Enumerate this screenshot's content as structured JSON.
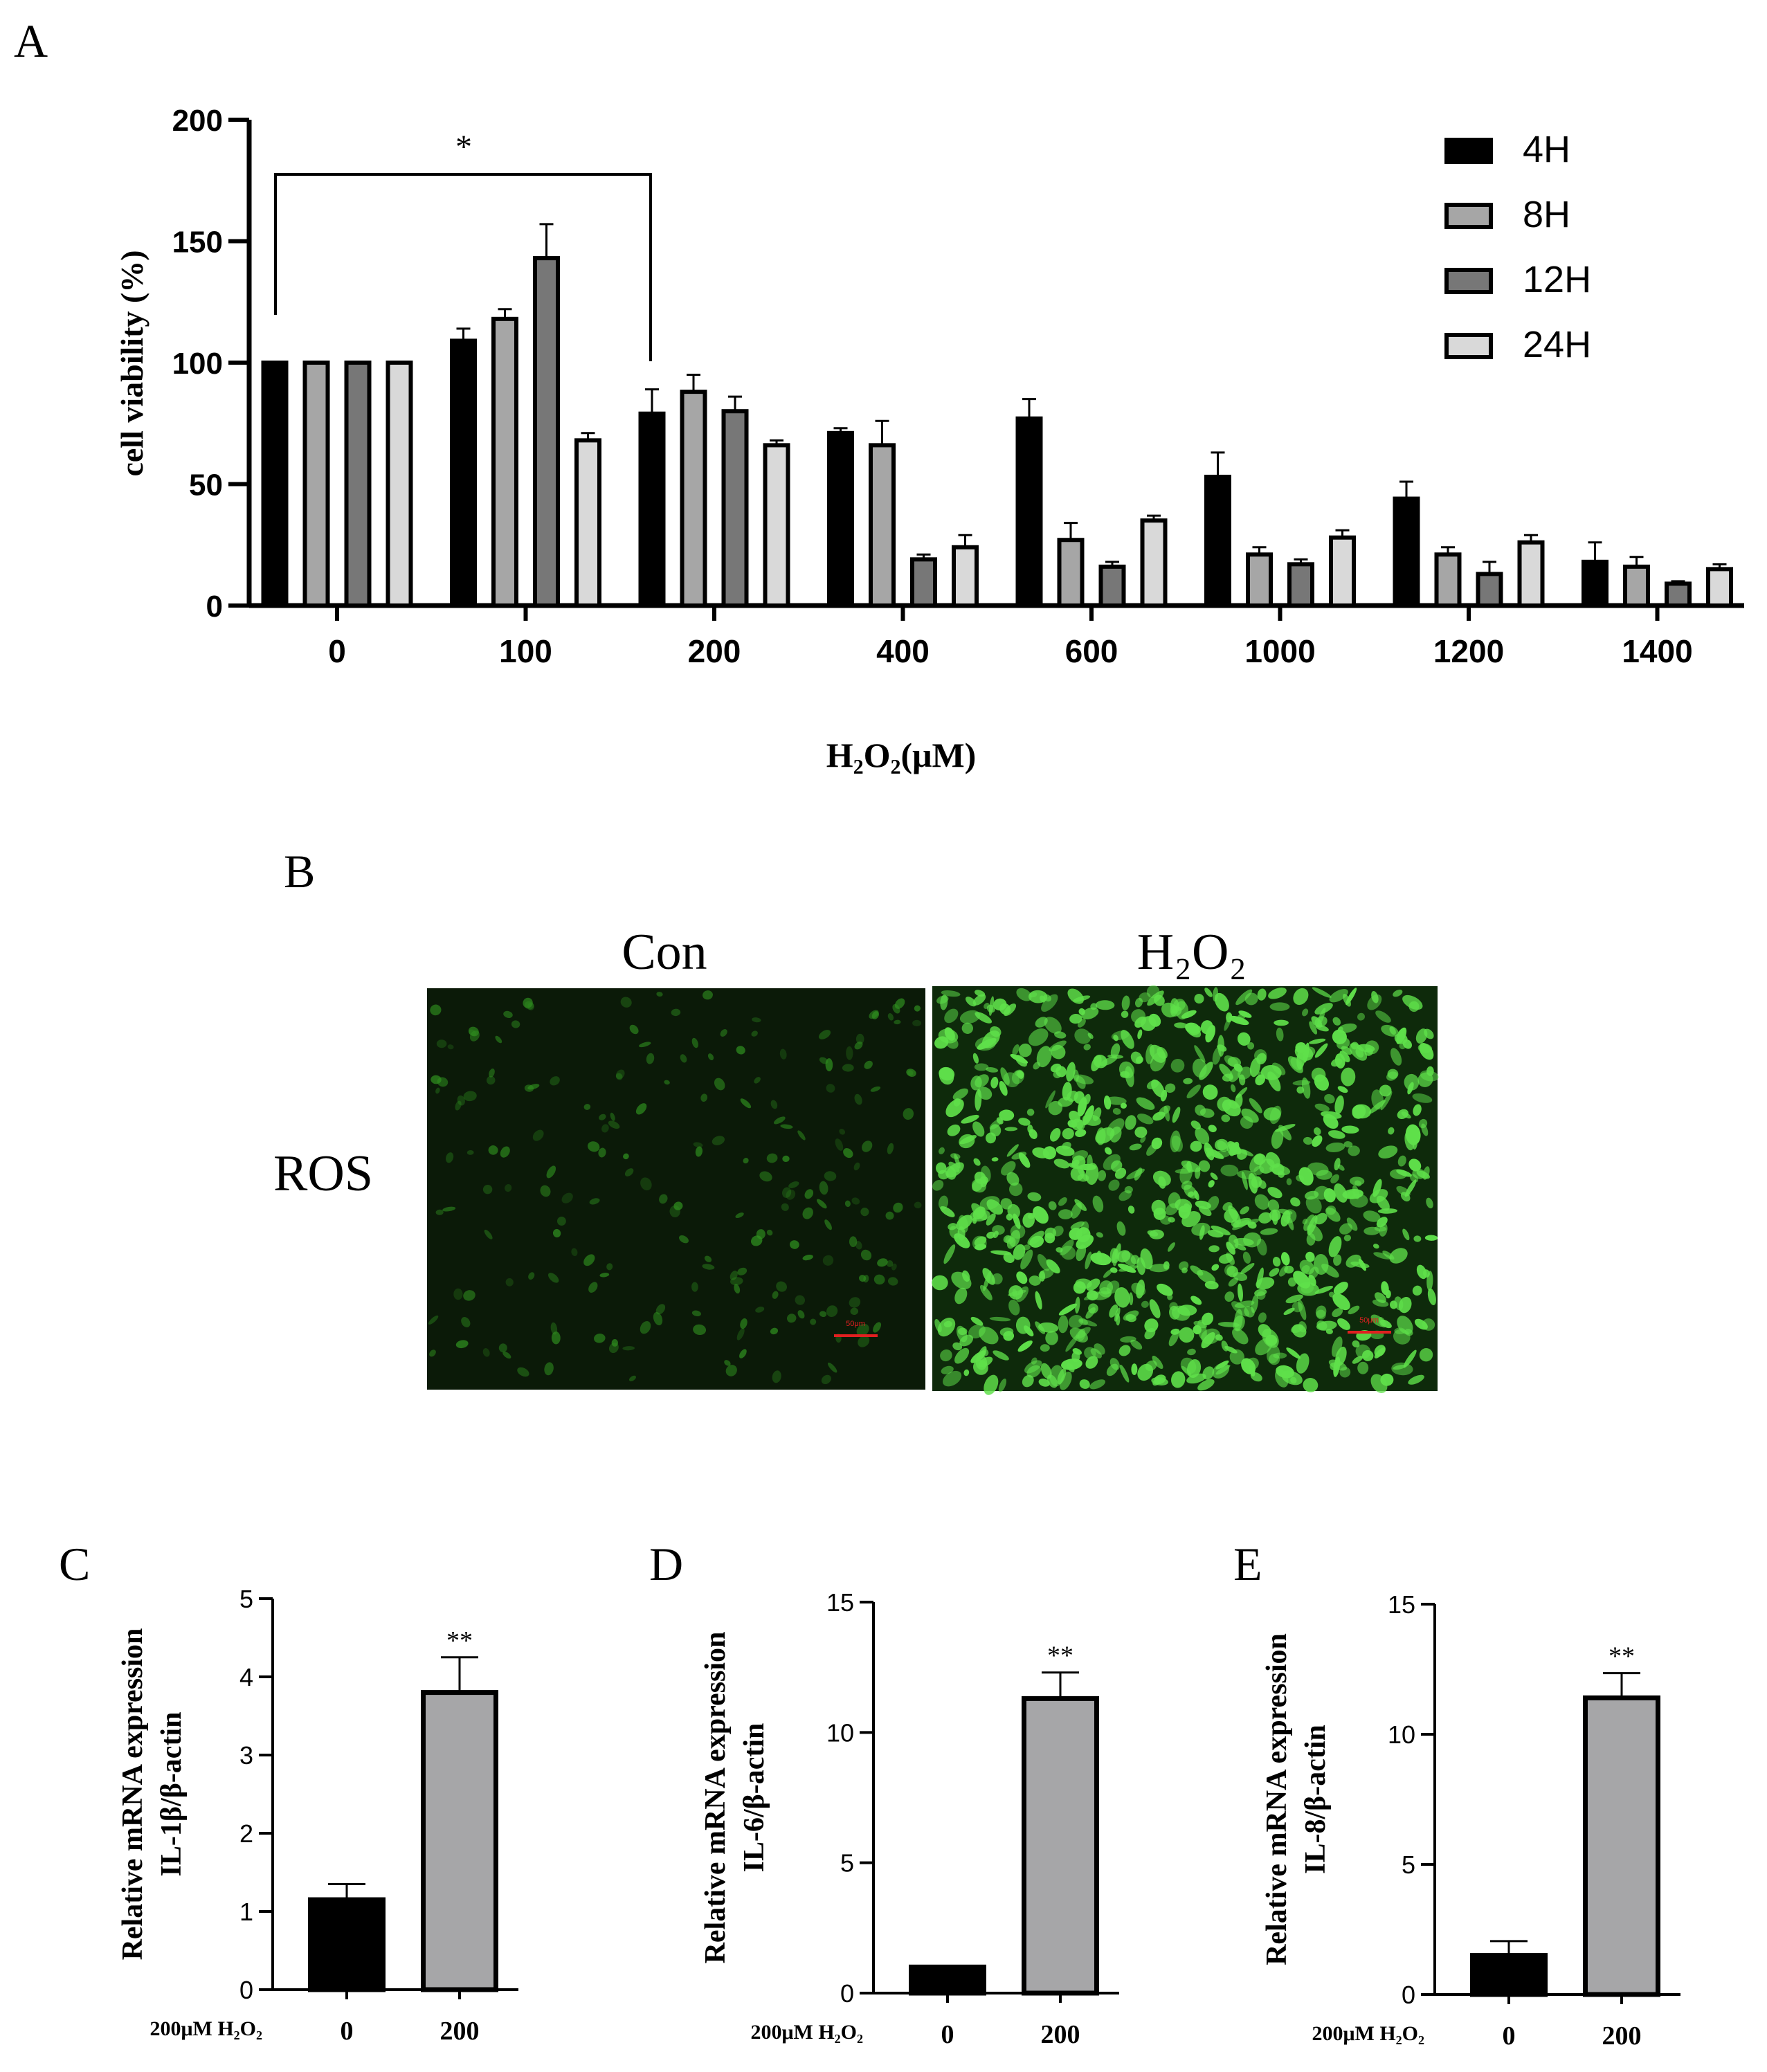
{
  "panels": {
    "a": "A",
    "b": "B",
    "c": "C",
    "d": "D",
    "e": "E"
  },
  "panel_b": {
    "col_con": "Con",
    "col_h2o2": "H₂O₂",
    "row_ros": "ROS",
    "con_image": {
      "bg": "#0b1a08",
      "cell_color": "#2f8f1f",
      "density": 0.35
    },
    "h2o2_image": {
      "bg": "#0e2a0b",
      "cell_color": "#5fe04a",
      "density": 1.0
    },
    "scale_bar_color": "#e02020",
    "scale_bar_text": "50μm"
  },
  "colors": {
    "4H": "#000000",
    "8H": "#a6a6a6",
    "12H": "#777777",
    "24H": "#d9d9d9",
    "bar0": "#000000",
    "bar200": "#a6a6a8"
  },
  "chart_data": [
    {
      "id": "A",
      "type": "bar",
      "ylabel": "cell viability (%)",
      "xlabel": "H₂O₂(μM)",
      "ylim": [
        0,
        200
      ],
      "yticks": [
        "0",
        "50",
        "100",
        "150",
        "200"
      ],
      "categories": [
        "0",
        "100",
        "200",
        "400",
        "600",
        "1000",
        "1200",
        "1400"
      ],
      "series": [
        {
          "name": "4H",
          "values": [
            100,
            109,
            79,
            71,
            77,
            53,
            44,
            18
          ],
          "errors": [
            0,
            5,
            10,
            2,
            8,
            10,
            7,
            8
          ]
        },
        {
          "name": "8H",
          "values": [
            100,
            118,
            88,
            66,
            27,
            21,
            21,
            16
          ],
          "errors": [
            0,
            4,
            7,
            10,
            7,
            3,
            3,
            4
          ]
        },
        {
          "name": "12H",
          "values": [
            100,
            143,
            80,
            19,
            16,
            17,
            13,
            9
          ],
          "errors": [
            0,
            14,
            6,
            2,
            2,
            2,
            5,
            1
          ]
        },
        {
          "name": "24H",
          "values": [
            100,
            68,
            66,
            24,
            35,
            28,
            26,
            15
          ],
          "errors": [
            0,
            3,
            2,
            5,
            2,
            3,
            3,
            2
          ]
        }
      ],
      "annotation": "*",
      "legend": "top-right",
      "grid": false
    },
    {
      "id": "C",
      "type": "bar",
      "ylabel_line1": "Relative mRNA expression",
      "ylabel_line2": "IL-1β/β-actin",
      "xlabel_prefix": "200μM H₂O₂",
      "categories": [
        "0",
        "200"
      ],
      "values": [
        1.15,
        3.8
      ],
      "errors": [
        0.2,
        0.45
      ],
      "ylim": [
        0,
        5
      ],
      "yticks": [
        "0",
        "1",
        "2",
        "3",
        "4",
        "5"
      ],
      "annotation": "**"
    },
    {
      "id": "D",
      "type": "bar",
      "ylabel_line1": "Relative mRNA expression",
      "ylabel_line2": "IL-6/β-actin",
      "xlabel_prefix": "200μM H₂O₂",
      "categories": [
        "0",
        "200"
      ],
      "values": [
        1.0,
        11.3
      ],
      "errors": [
        0.05,
        1.0
      ],
      "ylim": [
        0,
        15
      ],
      "yticks": [
        "0",
        "5",
        "10",
        "15"
      ],
      "annotation": "**"
    },
    {
      "id": "E",
      "type": "bar",
      "ylabel_line1": "Relative mRNA expression",
      "ylabel_line2": "IL-8/β-actin",
      "xlabel_prefix": "200μM H₂O₂",
      "categories": [
        "0",
        "200"
      ],
      "values": [
        1.5,
        11.4
      ],
      "errors": [
        0.55,
        0.95
      ],
      "ylim": [
        0,
        15
      ],
      "yticks": [
        "0",
        "5",
        "10",
        "15"
      ],
      "annotation": "**"
    }
  ]
}
